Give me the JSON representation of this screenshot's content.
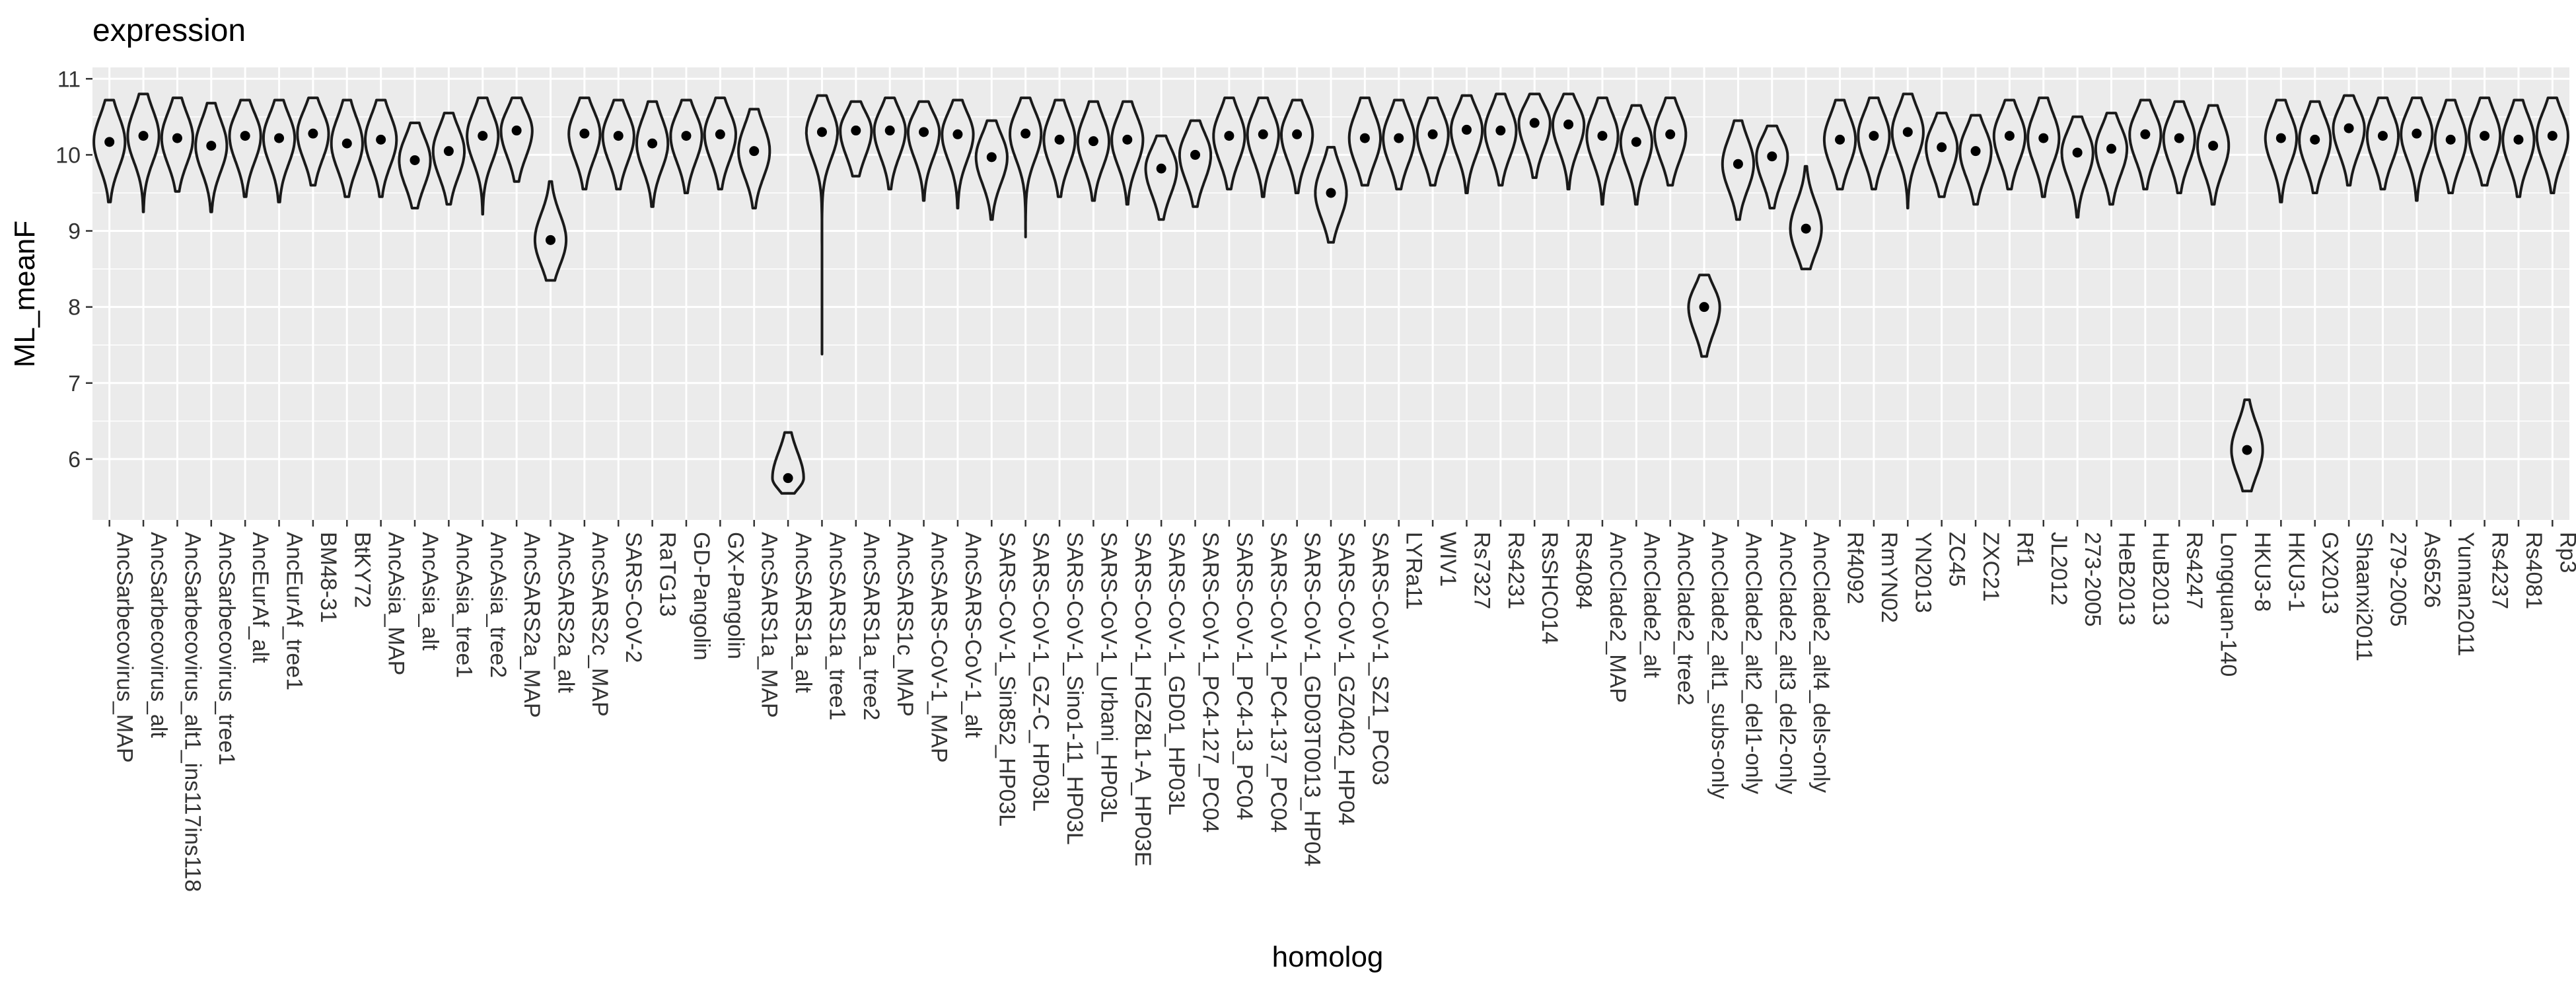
{
  "chart_data": {
    "type": "violin",
    "title": "expression",
    "xlabel": "homolog",
    "ylabel": "ML_meanF",
    "ylim": [
      5.2,
      11.15
    ],
    "yticks": [
      6,
      7,
      8,
      9,
      10,
      11
    ],
    "grid": true,
    "categories": [
      "AncSarbecovirus_MAP",
      "AncSarbecovirus_alt",
      "AncSarbecovirus_alt1_ins117ins118",
      "AncSarbecovirus_tree1",
      "AncEurAf_alt",
      "AncEurAf_tree1",
      "BM48-31",
      "BtKY72",
      "AncAsia_MAP",
      "AncAsia_alt",
      "AncAsia_tree1",
      "AncAsia_tree2",
      "AncSARS2a_MAP",
      "AncSARS2a_alt",
      "AncSARS2c_MAP",
      "SARS-CoV-2",
      "RaTG13",
      "GD-Pangolin",
      "GX-Pangolin",
      "AncSARS1a_MAP",
      "AncSARS1a_alt",
      "AncSARS1a_tree1",
      "AncSARS1a_tree2",
      "AncSARS1c_MAP",
      "AncSARS-CoV-1_MAP",
      "AncSARS-CoV-1_alt",
      "SARS-CoV-1_Sin852_HP03L",
      "SARS-CoV-1_GZ-C_HP03L",
      "SARS-CoV-1_Sino1-11_HP03L",
      "SARS-CoV-1_Urbani_HP03L",
      "SARS-CoV-1_HGZ8L1-A_HP03E",
      "SARS-CoV-1_GD01_HP03L",
      "SARS-CoV-1_PC4-127_PC04",
      "SARS-CoV-1_PC4-13_PC04",
      "SARS-CoV-1_PC4-137_PC04",
      "SARS-CoV-1_GD03T0013_HP04",
      "SARS-CoV-1_GZ0402_HP04",
      "SARS-CoV-1_SZ1_PC03",
      "LYRa11",
      "WIV1",
      "Rs7327",
      "Rs4231",
      "RsSHC014",
      "Rs4084",
      "AncClade2_MAP",
      "AncClade2_alt",
      "AncClade2_tree2",
      "AncClade2_alt1_subs-only",
      "AncClade2_alt2_del1-only",
      "AncClade2_alt3_del2-only",
      "AncClade2_alt4_dels-only",
      "Rf4092",
      "RmYN02",
      "YN2013",
      "ZC45",
      "ZXC21",
      "Rf1",
      "JL2012",
      "273-2005",
      "HeB2013",
      "HuB2013",
      "Rs4247",
      "Longquan-140",
      "HKU3-8",
      "HKU3-1",
      "GX2013",
      "Shaanxi2011",
      "279-2005",
      "As6526",
      "Yunnan2011",
      "Rs4237",
      "Rs4081",
      "Rp3"
    ],
    "series": [
      {
        "medians": [
          10.17,
          10.25,
          10.22,
          10.12,
          10.25,
          10.22,
          10.28,
          10.15,
          10.2,
          9.93,
          10.05,
          10.25,
          10.32,
          8.88,
          10.28,
          10.25,
          10.15,
          10.25,
          10.27,
          10.05,
          5.75,
          10.3,
          10.32,
          10.32,
          10.3,
          10.27,
          9.97,
          10.28,
          10.2,
          10.18,
          10.2,
          9.82,
          10.0,
          10.25,
          10.27,
          10.27,
          9.5,
          10.22,
          10.22,
          10.27,
          10.33,
          10.32,
          10.42,
          10.4,
          10.25,
          10.17,
          10.27,
          8.0,
          9.88,
          9.98,
          9.03,
          10.2,
          10.25,
          10.3,
          10.1,
          10.05,
          10.25,
          10.22,
          10.03,
          10.08,
          10.27,
          10.22,
          10.12,
          6.12,
          10.22,
          10.2,
          10.35,
          10.25,
          10.28,
          10.2,
          10.25,
          10.2,
          10.25
        ],
        "mins": [
          9.38,
          9.25,
          9.52,
          9.25,
          9.45,
          9.38,
          9.6,
          9.45,
          9.45,
          9.3,
          9.35,
          9.22,
          9.65,
          8.35,
          9.55,
          9.55,
          9.32,
          9.5,
          9.55,
          9.3,
          5.55,
          7.38,
          9.72,
          9.55,
          9.4,
          9.3,
          9.15,
          8.92,
          9.45,
          9.4,
          9.35,
          9.15,
          9.32,
          9.55,
          9.45,
          9.5,
          8.85,
          9.6,
          9.55,
          9.6,
          9.5,
          9.6,
          9.7,
          9.55,
          9.35,
          9.35,
          9.6,
          7.35,
          9.15,
          9.3,
          8.5,
          9.55,
          9.55,
          9.3,
          9.45,
          9.35,
          9.55,
          9.45,
          9.18,
          9.35,
          9.55,
          9.5,
          9.35,
          5.58,
          9.38,
          9.5,
          9.6,
          9.55,
          9.4,
          9.5,
          9.6,
          9.45,
          9.5
        ],
        "maxs": [
          10.72,
          10.8,
          10.75,
          10.68,
          10.72,
          10.72,
          10.75,
          10.72,
          10.72,
          10.42,
          10.55,
          10.75,
          10.75,
          9.65,
          10.75,
          10.72,
          10.7,
          10.72,
          10.75,
          10.6,
          6.35,
          10.78,
          10.7,
          10.75,
          10.7,
          10.72,
          10.45,
          10.75,
          10.72,
          10.7,
          10.7,
          10.25,
          10.45,
          10.75,
          10.75,
          10.72,
          10.1,
          10.75,
          10.72,
          10.75,
          10.78,
          10.8,
          10.8,
          10.8,
          10.75,
          10.65,
          10.75,
          8.42,
          10.45,
          10.38,
          9.85,
          10.72,
          10.75,
          10.8,
          10.55,
          10.52,
          10.72,
          10.75,
          10.5,
          10.55,
          10.72,
          10.7,
          10.65,
          6.78,
          10.72,
          10.7,
          10.78,
          10.75,
          10.75,
          10.72,
          10.75,
          10.72,
          10.75
        ]
      }
    ]
  }
}
